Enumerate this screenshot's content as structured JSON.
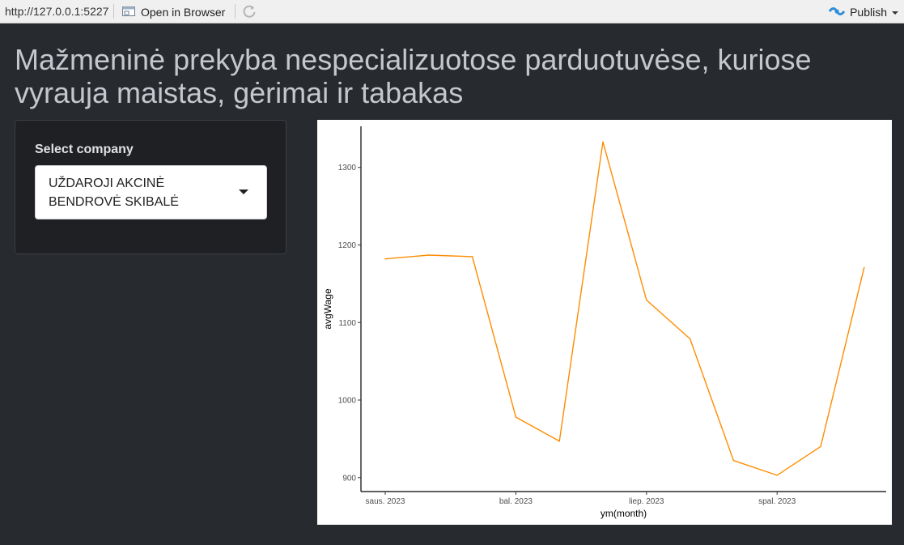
{
  "topbar": {
    "url": "http://127.0.0.1:5227",
    "open_in_browser": "Open in Browser",
    "publish": "Publish"
  },
  "page": {
    "title": "Mažmeninė prekyba nespecializuotose parduotuvėse, kuriose vyrauja maistas, gėrimai ir tabakas"
  },
  "sidebar": {
    "select_label": "Select company",
    "selected_company": "UŽDAROJI AKCINĖ BENDROVĖ SKIBALĖ"
  },
  "colors": {
    "line": "#ff8c00",
    "background": "#272a2f",
    "panel": "#1f2023"
  },
  "chart_data": {
    "type": "line",
    "xlabel": "ym(month)",
    "ylabel": "avgWage",
    "x": [
      "2023-01",
      "2023-02",
      "2023-03",
      "2023-04",
      "2023-05",
      "2023-06",
      "2023-07",
      "2023-08",
      "2023-09",
      "2023-10",
      "2023-11",
      "2023-12"
    ],
    "values": [
      1182,
      1187,
      1185,
      978,
      947,
      1333,
      1129,
      1079,
      922,
      903,
      940,
      1171
    ],
    "xticks": [
      {
        "x": "2023-01",
        "label": "saus. 2023"
      },
      {
        "x": "2023-04",
        "label": "bal. 2023"
      },
      {
        "x": "2023-07",
        "label": "liep. 2023"
      },
      {
        "x": "2023-10",
        "label": "spal. 2023"
      }
    ],
    "yticks": [
      900,
      1000,
      1100,
      1200,
      1300
    ],
    "ylim": [
      882,
      1353
    ],
    "grid": false
  }
}
